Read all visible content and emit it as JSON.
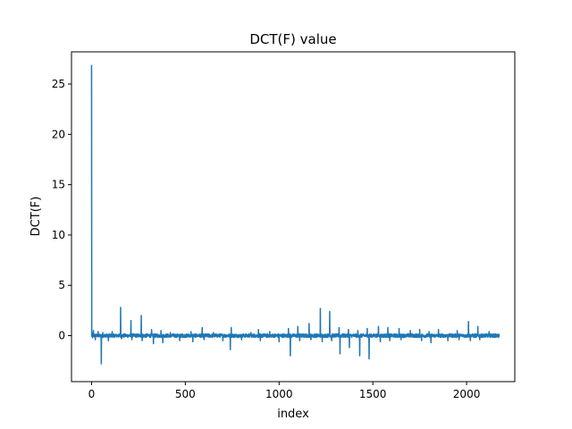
{
  "chart_data": {
    "type": "line",
    "title": "DCT(F) value",
    "xlabel": "index",
    "ylabel": "DCT(F)",
    "xlim": [
      -107,
      2257
    ],
    "ylim": [
      -4.57,
      28.2
    ],
    "xticks": [
      0,
      500,
      1000,
      1500,
      2000
    ],
    "yticks": [
      0,
      5,
      10,
      15,
      20,
      25
    ],
    "grid": false,
    "legend": "none",
    "colors": {
      "line": "#1f77b4"
    },
    "n_points": 2176,
    "spikes": [
      {
        "x": 0,
        "y": 26.9
      },
      {
        "x": 2,
        "y": 0.3
      },
      {
        "x": 5,
        "y": -0.2
      },
      {
        "x": 10,
        "y": 0.5
      },
      {
        "x": 20,
        "y": -0.4
      },
      {
        "x": 35,
        "y": 0.4
      },
      {
        "x": 52,
        "y": -2.8
      },
      {
        "x": 60,
        "y": 0.3
      },
      {
        "x": 90,
        "y": -0.5
      },
      {
        "x": 110,
        "y": 0.4
      },
      {
        "x": 155,
        "y": 2.8
      },
      {
        "x": 160,
        "y": -0.3
      },
      {
        "x": 210,
        "y": 1.5
      },
      {
        "x": 215,
        "y": -0.4
      },
      {
        "x": 265,
        "y": 2.0
      },
      {
        "x": 270,
        "y": -0.5
      },
      {
        "x": 320,
        "y": 0.6
      },
      {
        "x": 330,
        "y": -0.8
      },
      {
        "x": 370,
        "y": 0.5
      },
      {
        "x": 380,
        "y": -0.7
      },
      {
        "x": 420,
        "y": 0.3
      },
      {
        "x": 470,
        "y": -0.5
      },
      {
        "x": 530,
        "y": 0.4
      },
      {
        "x": 540,
        "y": -0.6
      },
      {
        "x": 590,
        "y": 0.8
      },
      {
        "x": 600,
        "y": -0.4
      },
      {
        "x": 650,
        "y": 0.3
      },
      {
        "x": 700,
        "y": -0.5
      },
      {
        "x": 740,
        "y": -1.4
      },
      {
        "x": 745,
        "y": 0.8
      },
      {
        "x": 800,
        "y": -0.4
      },
      {
        "x": 850,
        "y": 0.3
      },
      {
        "x": 890,
        "y": 0.6
      },
      {
        "x": 900,
        "y": -0.5
      },
      {
        "x": 950,
        "y": 0.4
      },
      {
        "x": 1000,
        "y": -0.6
      },
      {
        "x": 1050,
        "y": 0.7
      },
      {
        "x": 1060,
        "y": -2.0
      },
      {
        "x": 1100,
        "y": 0.9
      },
      {
        "x": 1110,
        "y": -0.5
      },
      {
        "x": 1160,
        "y": 1.2
      },
      {
        "x": 1170,
        "y": -0.4
      },
      {
        "x": 1220,
        "y": 2.7
      },
      {
        "x": 1230,
        "y": -0.6
      },
      {
        "x": 1270,
        "y": 2.4
      },
      {
        "x": 1280,
        "y": -0.5
      },
      {
        "x": 1320,
        "y": 0.8
      },
      {
        "x": 1325,
        "y": -1.8
      },
      {
        "x": 1370,
        "y": 0.6
      },
      {
        "x": 1375,
        "y": -1.2
      },
      {
        "x": 1420,
        "y": 0.5
      },
      {
        "x": 1430,
        "y": -2.0
      },
      {
        "x": 1470,
        "y": 0.7
      },
      {
        "x": 1480,
        "y": -2.3
      },
      {
        "x": 1530,
        "y": 0.9
      },
      {
        "x": 1540,
        "y": -0.6
      },
      {
        "x": 1580,
        "y": 0.8
      },
      {
        "x": 1590,
        "y": -0.5
      },
      {
        "x": 1640,
        "y": 0.7
      },
      {
        "x": 1650,
        "y": -0.4
      },
      {
        "x": 1700,
        "y": 0.5
      },
      {
        "x": 1750,
        "y": 0.6
      },
      {
        "x": 1760,
        "y": -0.5
      },
      {
        "x": 1800,
        "y": 0.4
      },
      {
        "x": 1810,
        "y": -0.7
      },
      {
        "x": 1850,
        "y": 0.6
      },
      {
        "x": 1900,
        "y": -0.5
      },
      {
        "x": 1950,
        "y": 0.5
      },
      {
        "x": 1960,
        "y": -0.4
      },
      {
        "x": 2010,
        "y": 1.4
      },
      {
        "x": 2020,
        "y": -0.5
      },
      {
        "x": 2060,
        "y": 0.9
      },
      {
        "x": 2070,
        "y": -0.4
      },
      {
        "x": 2120,
        "y": 0.4
      },
      {
        "x": 2175,
        "y": 0.1
      }
    ]
  }
}
